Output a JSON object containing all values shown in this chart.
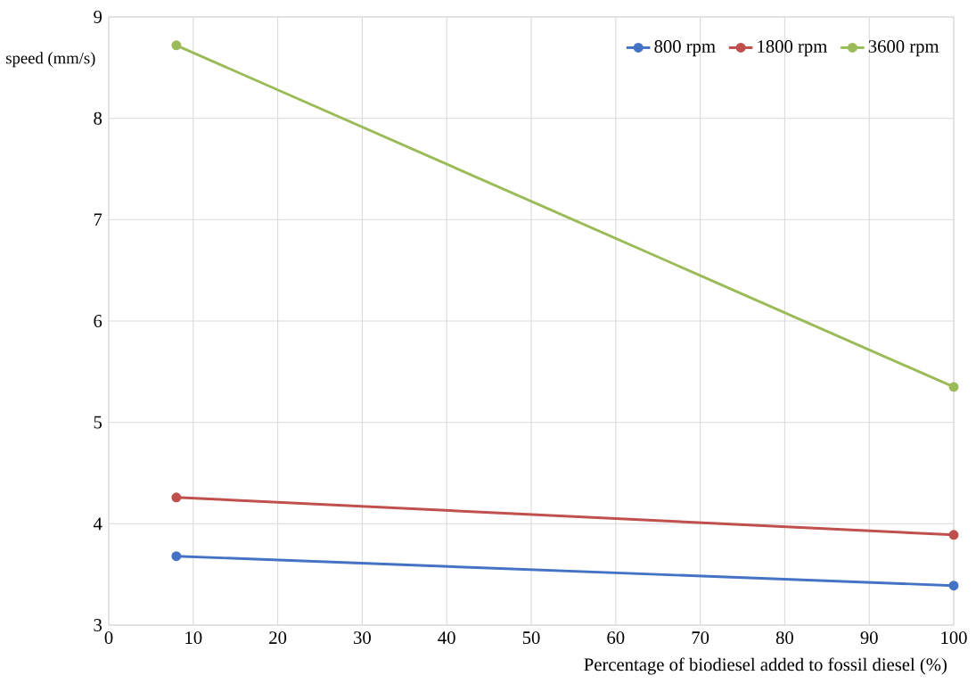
{
  "chart_data": {
    "type": "line",
    "xlabel": "Percentage of biodiesel added to fossil diesel (%)",
    "ylabel": "speed (mm/s)",
    "x": [
      8,
      100
    ],
    "series": [
      {
        "name": "800 rpm",
        "color": "#4472c4",
        "values": [
          3.68,
          3.39
        ]
      },
      {
        "name": "1800 rpm",
        "color": "#c0504d",
        "values": [
          4.26,
          3.89
        ]
      },
      {
        "name": "3600 rpm",
        "color": "#9bbb59",
        "values": [
          8.72,
          5.35
        ]
      }
    ],
    "xlim": [
      0,
      100
    ],
    "xticks": [
      0,
      10,
      20,
      30,
      40,
      50,
      60,
      70,
      80,
      90,
      100
    ],
    "ylim": [
      3,
      9
    ],
    "yticks": [
      3,
      4,
      5,
      6,
      7,
      8,
      9
    ],
    "grid": true,
    "legend": "top right",
    "marker": "circle",
    "line_style": "solid"
  }
}
